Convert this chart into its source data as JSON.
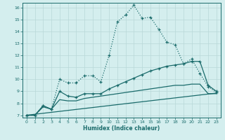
{
  "xlabel": "Humidex (Indice chaleur)",
  "bg_color": "#d4eeee",
  "grid_color": "#b8d8d8",
  "line_color": "#1a6b6b",
  "xlim": [
    -0.5,
    23.5
  ],
  "ylim": [
    6.8,
    16.4
  ],
  "xticks": [
    0,
    1,
    2,
    3,
    4,
    5,
    6,
    7,
    8,
    9,
    10,
    11,
    12,
    13,
    14,
    15,
    16,
    17,
    18,
    19,
    20,
    21,
    22,
    23
  ],
  "yticks": [
    7,
    8,
    9,
    10,
    11,
    12,
    13,
    14,
    15,
    16
  ],
  "line1_x": [
    0,
    1,
    2,
    3,
    4,
    5,
    6,
    7,
    8,
    9,
    10,
    11,
    12,
    13,
    14,
    15,
    16,
    17,
    18,
    19,
    20,
    21,
    22,
    23
  ],
  "line1_y": [
    7.0,
    7.0,
    7.8,
    7.5,
    10.0,
    9.7,
    9.7,
    10.3,
    10.3,
    9.8,
    12.0,
    14.8,
    15.4,
    16.2,
    15.1,
    15.2,
    14.2,
    13.1,
    12.9,
    11.3,
    11.7,
    10.5,
    9.4,
    8.9
  ],
  "line2_x": [
    0,
    1,
    2,
    3,
    4,
    5,
    6,
    7,
    8,
    9,
    10,
    11,
    12,
    13,
    14,
    15,
    16,
    17,
    18,
    19,
    20,
    21,
    22,
    23
  ],
  "line2_y": [
    7.0,
    7.0,
    7.8,
    7.5,
    9.0,
    8.6,
    8.5,
    8.8,
    8.8,
    8.8,
    9.2,
    9.5,
    9.8,
    10.1,
    10.4,
    10.7,
    10.9,
    11.1,
    11.2,
    11.3,
    11.5,
    11.5,
    9.5,
    9.0
  ],
  "line3_x": [
    0,
    1,
    2,
    3,
    4,
    5,
    6,
    7,
    8,
    9,
    10,
    11,
    12,
    13,
    14,
    15,
    16,
    17,
    18,
    19,
    20,
    21,
    22,
    23
  ],
  "line3_y": [
    7.0,
    7.0,
    7.7,
    7.5,
    8.3,
    8.2,
    8.2,
    8.4,
    8.5,
    8.6,
    8.7,
    8.8,
    8.9,
    9.0,
    9.1,
    9.2,
    9.3,
    9.4,
    9.5,
    9.5,
    9.6,
    9.6,
    8.8,
    8.8
  ],
  "line4_x": [
    0,
    23
  ],
  "line4_y": [
    7.0,
    8.85
  ]
}
